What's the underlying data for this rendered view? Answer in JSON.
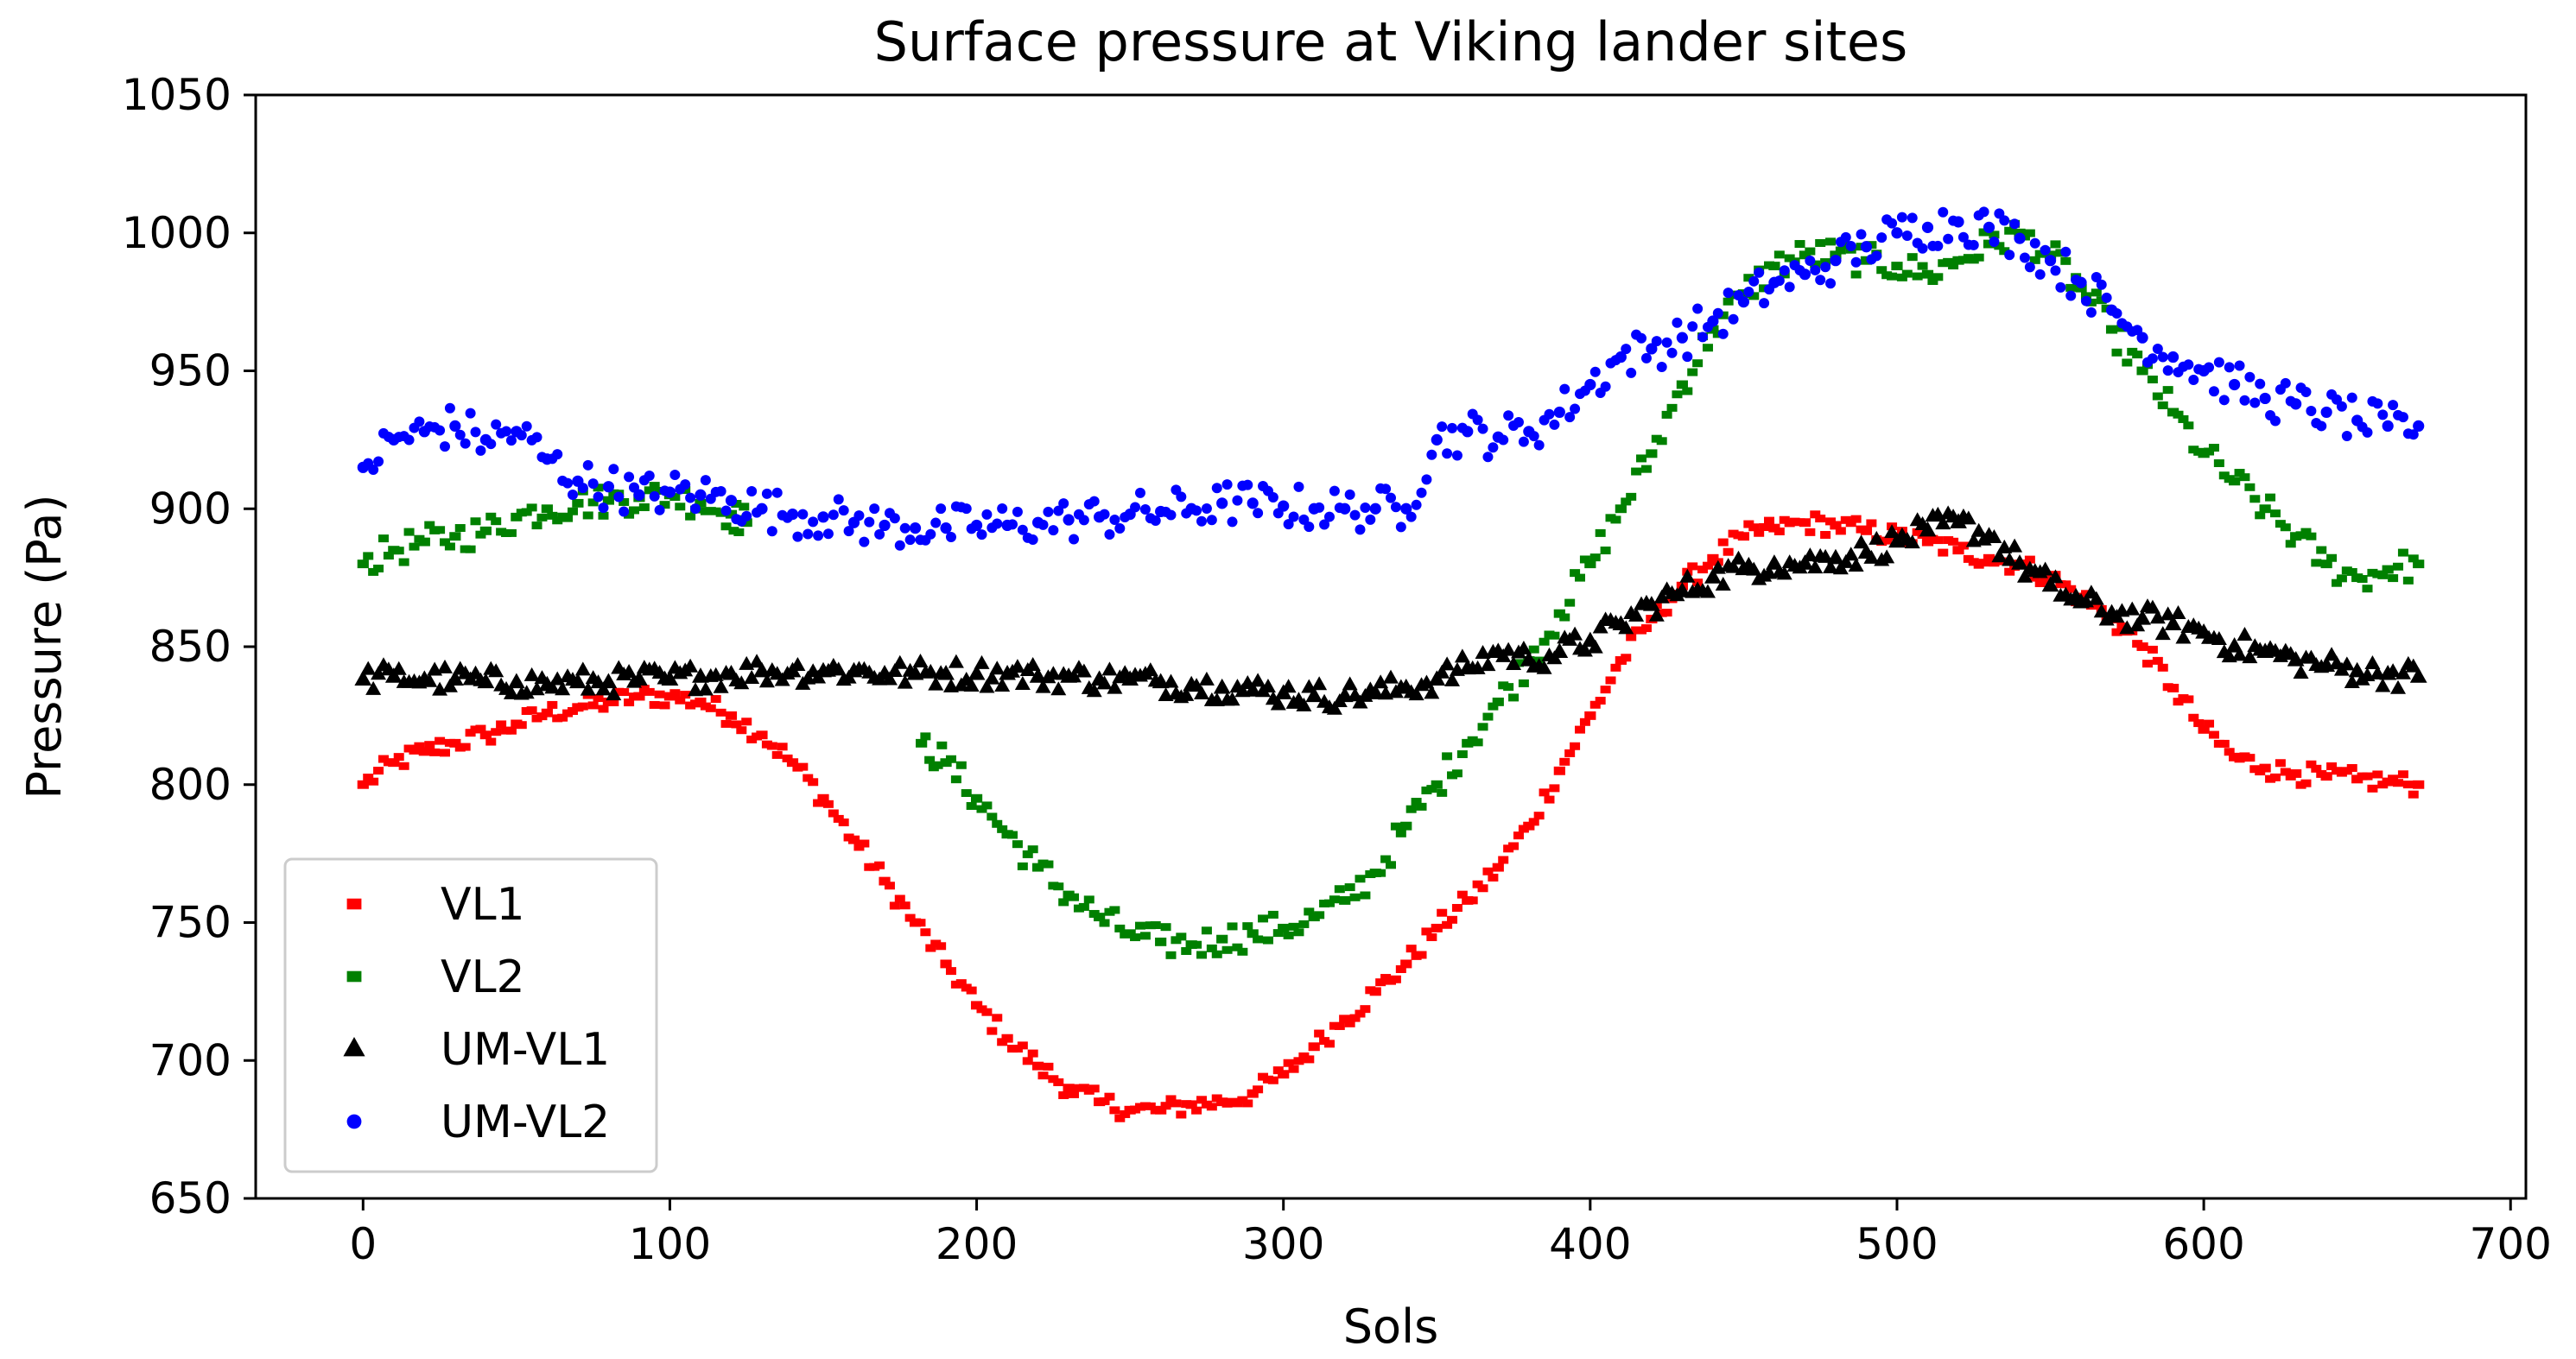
{
  "chart_data": {
    "type": "scatter",
    "title": "Surface pressure at Viking lander sites",
    "xlabel": "Sols",
    "ylabel": "Pressure (Pa)",
    "xlim": [
      -35,
      705
    ],
    "ylim": [
      650,
      1050
    ],
    "xticks": [
      0,
      100,
      200,
      300,
      400,
      500,
      600,
      700
    ],
    "yticks": [
      650,
      700,
      750,
      800,
      850,
      900,
      950,
      1000,
      1050
    ],
    "grid": false,
    "legend_position": "lower-left",
    "series": [
      {
        "name": "VL1",
        "color": "#ff0000",
        "marker": "square",
        "x": [
          0,
          10,
          20,
          30,
          40,
          50,
          60,
          70,
          80,
          90,
          100,
          110,
          120,
          130,
          140,
          150,
          160,
          170,
          180,
          190,
          200,
          210,
          220,
          230,
          240,
          250,
          260,
          270,
          280,
          290,
          300,
          310,
          320,
          330,
          340,
          350,
          360,
          370,
          380,
          390,
          400,
          410,
          420,
          430,
          440,
          450,
          460,
          470,
          480,
          490,
          500,
          510,
          520,
          530,
          540,
          550,
          560,
          570,
          580,
          590,
          600,
          610,
          620,
          630,
          640,
          650,
          660,
          670
        ],
        "y": [
          800,
          808,
          812,
          815,
          818,
          822,
          826,
          828,
          830,
          832,
          832,
          830,
          825,
          818,
          808,
          795,
          780,
          765,
          750,
          735,
          720,
          708,
          698,
          690,
          685,
          682,
          682,
          684,
          685,
          688,
          695,
          705,
          715,
          725,
          735,
          748,
          758,
          770,
          785,
          805,
          825,
          845,
          860,
          872,
          882,
          890,
          893,
          895,
          894,
          892,
          890,
          888,
          885,
          882,
          880,
          875,
          868,
          860,
          850,
          835,
          820,
          810,
          806,
          804,
          803,
          802,
          801,
          800
        ]
      },
      {
        "name": "VL2",
        "color": "#008000",
        "marker": "square",
        "x": [
          0,
          10,
          20,
          30,
          40,
          50,
          60,
          70,
          80,
          90,
          100,
          110,
          120,
          125,
          182,
          190,
          200,
          210,
          220,
          230,
          240,
          250,
          260,
          270,
          280,
          290,
          300,
          310,
          320,
          330,
          340,
          350,
          360,
          370,
          380,
          390,
          400,
          410,
          420,
          430,
          440,
          450,
          460,
          470,
          480,
          490,
          500,
          510,
          520,
          530,
          540,
          550,
          560,
          570,
          580,
          590,
          600,
          610,
          620,
          630,
          640,
          650,
          660,
          670
        ],
        "y": [
          880,
          885,
          888,
          890,
          892,
          897,
          900,
          902,
          903,
          904,
          905,
          902,
          898,
          895,
          815,
          808,
          795,
          782,
          770,
          760,
          752,
          746,
          743,
          742,
          744,
          746,
          748,
          752,
          758,
          768,
          785,
          800,
          815,
          830,
          845,
          862,
          880,
          900,
          920,
          945,
          965,
          978,
          988,
          992,
          992,
          990,
          988,
          985,
          990,
          996,
          1000,
          992,
          980,
          965,
          950,
          935,
          920,
          910,
          900,
          890,
          880,
          875,
          878,
          880
        ]
      },
      {
        "name": "UM-VL1",
        "color": "#000000",
        "marker": "triangle",
        "x": [
          0,
          10,
          20,
          30,
          40,
          50,
          60,
          70,
          80,
          90,
          100,
          110,
          120,
          130,
          140,
          150,
          160,
          170,
          180,
          190,
          200,
          210,
          220,
          230,
          240,
          250,
          260,
          270,
          280,
          290,
          300,
          310,
          320,
          330,
          340,
          350,
          360,
          370,
          380,
          390,
          400,
          410,
          420,
          430,
          440,
          450,
          460,
          470,
          480,
          490,
          500,
          510,
          520,
          530,
          540,
          550,
          560,
          570,
          580,
          590,
          600,
          610,
          620,
          630,
          640,
          650,
          660,
          670
        ],
        "y": [
          838,
          839,
          838,
          838,
          837,
          837,
          836,
          837,
          837,
          838,
          838,
          839,
          840,
          841,
          841,
          841,
          841,
          840,
          840,
          840,
          840,
          840,
          839,
          839,
          838,
          838,
          837,
          836,
          835,
          834,
          833,
          832,
          832,
          833,
          835,
          838,
          842,
          848,
          845,
          848,
          852,
          858,
          865,
          870,
          875,
          878,
          880,
          880,
          882,
          884,
          888,
          892,
          895,
          890,
          880,
          872,
          866,
          862,
          860,
          858,
          855,
          850,
          848,
          845,
          843,
          841,
          840,
          839
        ]
      },
      {
        "name": "UM-VL2",
        "color": "#0000ff",
        "marker": "circle",
        "x": [
          0,
          10,
          20,
          30,
          40,
          50,
          60,
          70,
          80,
          90,
          100,
          110,
          120,
          130,
          140,
          150,
          160,
          170,
          180,
          190,
          200,
          210,
          220,
          230,
          240,
          250,
          260,
          270,
          280,
          290,
          300,
          310,
          320,
          330,
          340,
          350,
          360,
          370,
          380,
          390,
          400,
          410,
          420,
          430,
          440,
          450,
          460,
          470,
          480,
          490,
          500,
          510,
          520,
          530,
          540,
          550,
          560,
          570,
          580,
          590,
          600,
          610,
          620,
          630,
          640,
          650,
          660,
          670
        ],
        "y": [
          915,
          925,
          928,
          930,
          925,
          928,
          918,
          910,
          908,
          905,
          906,
          905,
          903,
          900,
          898,
          897,
          895,
          894,
          893,
          893,
          894,
          894,
          895,
          896,
          897,
          898,
          899,
          900,
          902,
          902,
          901,
          900,
          900,
          900,
          900,
          925,
          928,
          926,
          928,
          935,
          945,
          955,
          958,
          962,
          968,
          975,
          982,
          985,
          990,
          995,
          1000,
          1002,
          1004,
          1002,
          998,
          990,
          982,
          972,
          962,
          955,
          950,
          945,
          940,
          938,
          935,
          932,
          930,
          930
        ]
      }
    ]
  }
}
